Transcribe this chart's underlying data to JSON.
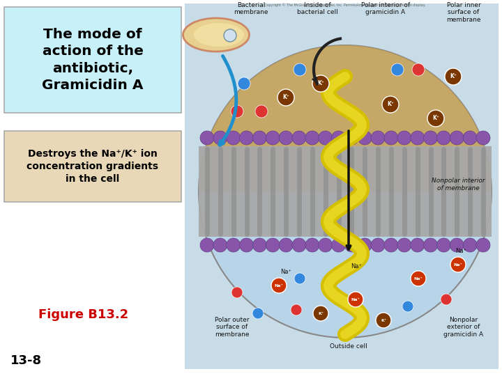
{
  "title_text": "The mode of\naction of the\nantibiotic,\nGramicidin A",
  "title_box_color": "#c8f0f8",
  "title_text_color": "#000000",
  "subtitle_text": "Destroys the Na⁺/K⁺ ion\nconcentration gradients\nin the cell",
  "subtitle_box_color": "#e8d8b8",
  "subtitle_text_color": "#000000",
  "figure_label": "Figure B13.2",
  "figure_label_color": "#cc0000",
  "slide_number": "13-8",
  "slide_number_color": "#000000",
  "background_color": "#ffffff",
  "image_bg_color": "#c8dce8"
}
